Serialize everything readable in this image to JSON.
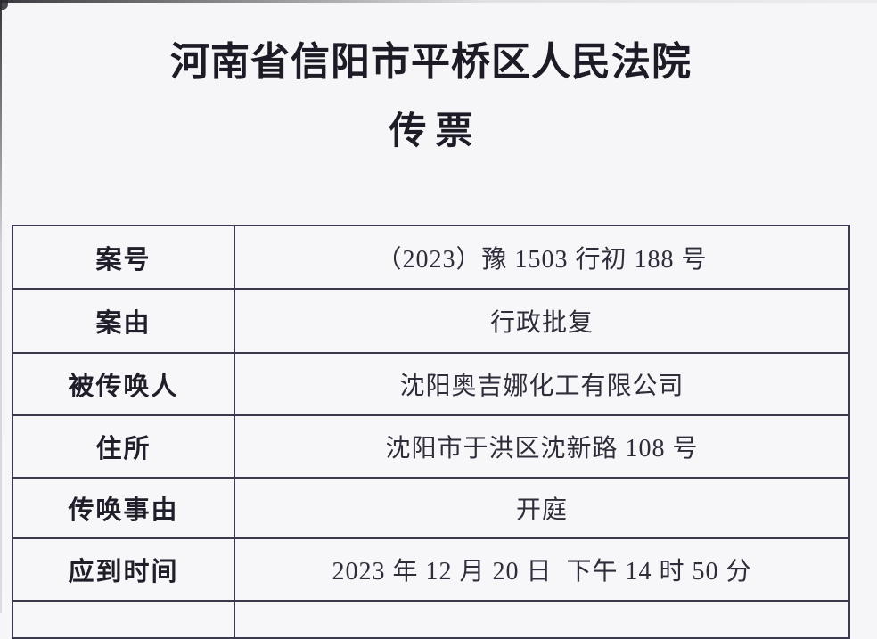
{
  "document": {
    "court_name": "河南省信阳市平桥区人民法院",
    "doc_title": "传票"
  },
  "table": {
    "rows": [
      {
        "label": "案号",
        "value": "（2023）豫 1503 行初 188 号"
      },
      {
        "label": "案由",
        "value": "行政批复"
      },
      {
        "label": "被传唤人",
        "value": "沈阳奥吉娜化工有限公司"
      },
      {
        "label": "住所",
        "value": "沈阳市于洪区沈新路 108 号"
      },
      {
        "label": "传唤事由",
        "value": "开庭"
      },
      {
        "label": "应到时间",
        "value": "2023 年 12 月 20 日  下午 14 时 50 分"
      },
      {
        "label": "",
        "value": ""
      }
    ]
  },
  "colors": {
    "page_background": "#f6f6f8",
    "table_border": "#3b3950",
    "title_text": "#1d1c26",
    "body_text": "#2e2d3a",
    "photo_edge": "#2b2b30"
  }
}
